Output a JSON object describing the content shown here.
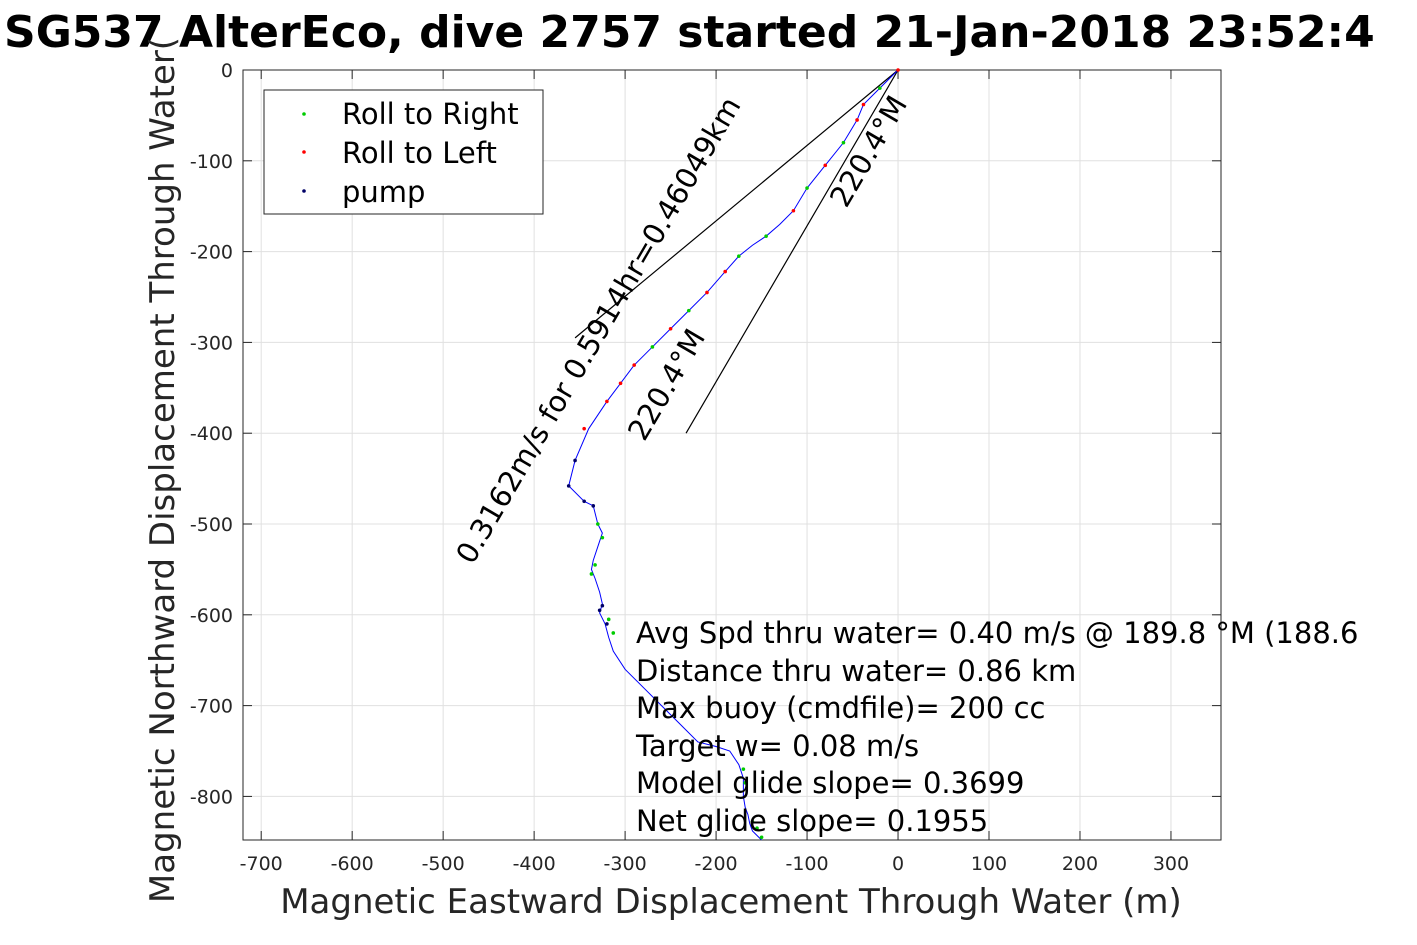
{
  "chart_data": {
    "type": "line",
    "title": "SG537 AlterEco, dive 2757 started 21-Jan-2018 23:52:4",
    "xlabel": "Magnetic Eastward Displacement Through Water (m)",
    "ylabel": "Magnetic Northward Displacement Through Water(",
    "xlim": [
      -720,
      355
    ],
    "ylim": [
      -848,
      0
    ],
    "xticks": [
      -700,
      -600,
      -500,
      -400,
      -300,
      -200,
      -100,
      0,
      100,
      200,
      300
    ],
    "yticks": [
      0,
      -100,
      -200,
      -300,
      -400,
      -500,
      -600,
      -700,
      -800
    ],
    "xtick_labels": [
      "-700",
      "-600",
      "-500",
      "-400",
      "-300",
      "-200",
      "-100",
      "0",
      "100",
      "200",
      "300"
    ],
    "ytick_labels": [
      "0",
      "-100",
      "-200",
      "-300",
      "-400",
      "-500",
      "-600",
      "-700",
      "-800"
    ],
    "grid": true,
    "legend": {
      "placement": "top-left",
      "entries": [
        "Roll to Right",
        "Roll to Left",
        "pump"
      ]
    },
    "series": [
      {
        "name": "track",
        "color": "#0000ff",
        "x": [
          0,
          -20,
          -38,
          -45,
          -60,
          -80,
          -100,
          -115,
          -130,
          -145,
          -160,
          -175,
          -190,
          -210,
          -230,
          -250,
          -270,
          -290,
          -305,
          -320,
          -340,
          -355,
          -362,
          -345,
          -335,
          -330,
          -325,
          -330,
          -335,
          -337,
          -333,
          -328,
          -325,
          -328,
          -322,
          -318,
          -313,
          -300,
          -280,
          -260,
          -240,
          -220,
          -200,
          -185,
          -175,
          -170,
          -170,
          -168,
          -165,
          -163,
          -160,
          -155,
          -150
        ],
        "y": [
          0,
          -20,
          -38,
          -55,
          -80,
          -105,
          -130,
          -155,
          -170,
          -183,
          -193,
          -205,
          -222,
          -245,
          -265,
          -285,
          -305,
          -325,
          -345,
          -365,
          -395,
          -430,
          -458,
          -475,
          -480,
          -500,
          -510,
          -525,
          -540,
          -550,
          -560,
          -575,
          -588,
          -598,
          -610,
          -625,
          -640,
          -660,
          -680,
          -700,
          -720,
          -740,
          -745,
          -750,
          -765,
          -780,
          -800,
          -812,
          -820,
          -830,
          -838,
          -843,
          -848
        ]
      },
      {
        "name": "Roll to Right",
        "color": "#00cc00",
        "x": [
          -20,
          -60,
          -100,
          -145,
          -175,
          -230,
          -270,
          -330,
          -325,
          -333,
          -337,
          -318,
          -313,
          -170,
          -168,
          -160,
          -155,
          -150
        ],
        "y": [
          -20,
          -80,
          -130,
          -183,
          -205,
          -265,
          -305,
          -500,
          -515,
          -545,
          -555,
          -605,
          -620,
          -770,
          -785,
          -828,
          -835,
          -845
        ]
      },
      {
        "name": "Roll to Left",
        "color": "#ff0000",
        "x": [
          0,
          -38,
          -45,
          -80,
          -115,
          -190,
          -210,
          -250,
          -290,
          -305,
          -320,
          -345
        ],
        "y": [
          0,
          -38,
          -55,
          -105,
          -155,
          -222,
          -245,
          -285,
          -325,
          -345,
          -365,
          -395
        ]
      },
      {
        "name": "pump",
        "color": "#000066",
        "x": [
          -355,
          -362,
          -345,
          -335,
          -328,
          -325,
          -320
        ],
        "y": [
          -430,
          -458,
          -475,
          -480,
          -595,
          -590,
          -610
        ]
      }
    ],
    "cone_lines": [
      {
        "x": [
          0,
          -355
        ],
        "y": [
          0,
          -295
        ]
      },
      {
        "x": [
          0,
          -233
        ],
        "y": [
          0,
          -400
        ]
      }
    ],
    "annotations": [
      {
        "text": "0.3162m/s for 0.5914hr=0.46049km",
        "x": -320,
        "y": -292
      },
      {
        "text": "220.4°M",
        "x": -23,
        "y": -95
      },
      {
        "text": "220.4°M",
        "x": -245,
        "y": -352
      }
    ],
    "stats": [
      "Avg Spd thru water=  0.40 m/s @ 189.8 °M (188.6",
      "Distance thru water=  0.86 km",
      "Max buoy (cmdfile)= 200 cc",
      "Target w= 0.08 m/s",
      "Model glide slope= 0.3699",
      "Net glide slope= 0.1955"
    ]
  }
}
